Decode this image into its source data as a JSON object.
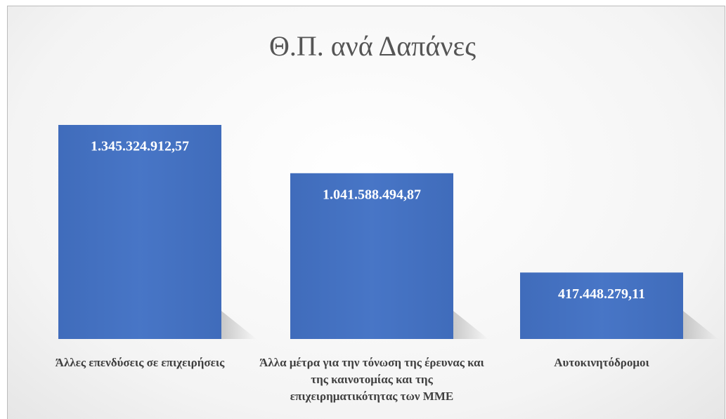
{
  "chart_data": {
    "type": "bar",
    "title": "Θ.Π. ανά Δαπάνες",
    "categories": [
      "Άλλες επενδύσεις σε επιχειρήσεις",
      "Άλλα μέτρα για την τόνωση της έρευνας και της καινοτομίας και της επιχειρηματικότητας των ΜΜΕ",
      "Αυτοκινητόδρομοι"
    ],
    "values": [
      1345324912.57,
      1041588494.87,
      417448279.11
    ],
    "value_labels": [
      "1.345.324.912,57",
      "1.041.588.494,87",
      "417.448.279,11"
    ],
    "color": "#4472c4"
  }
}
